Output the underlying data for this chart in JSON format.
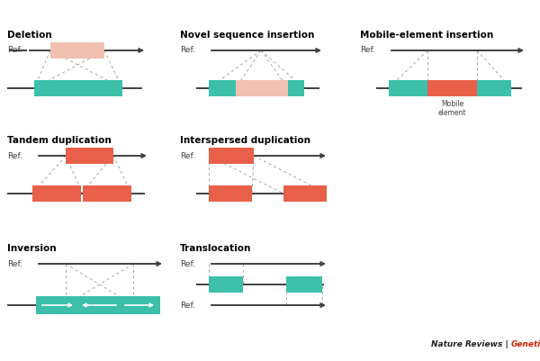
{
  "background_color": "#ffffff",
  "teal": "#3dbfaa",
  "orange_red": "#e8604a",
  "salmon_light": "#f0c0b0",
  "line_color": "#404040",
  "dashed_color": "#aaaaaa",
  "panel_titles": [
    "Deletion",
    "Novel sequence insertion",
    "Mobile-element insertion",
    "Tandem duplication",
    "Interspersed duplication",
    "Inversion",
    "Translocation"
  ],
  "footer_black": "Nature Reviews | ",
  "footer_red": "Genetics"
}
